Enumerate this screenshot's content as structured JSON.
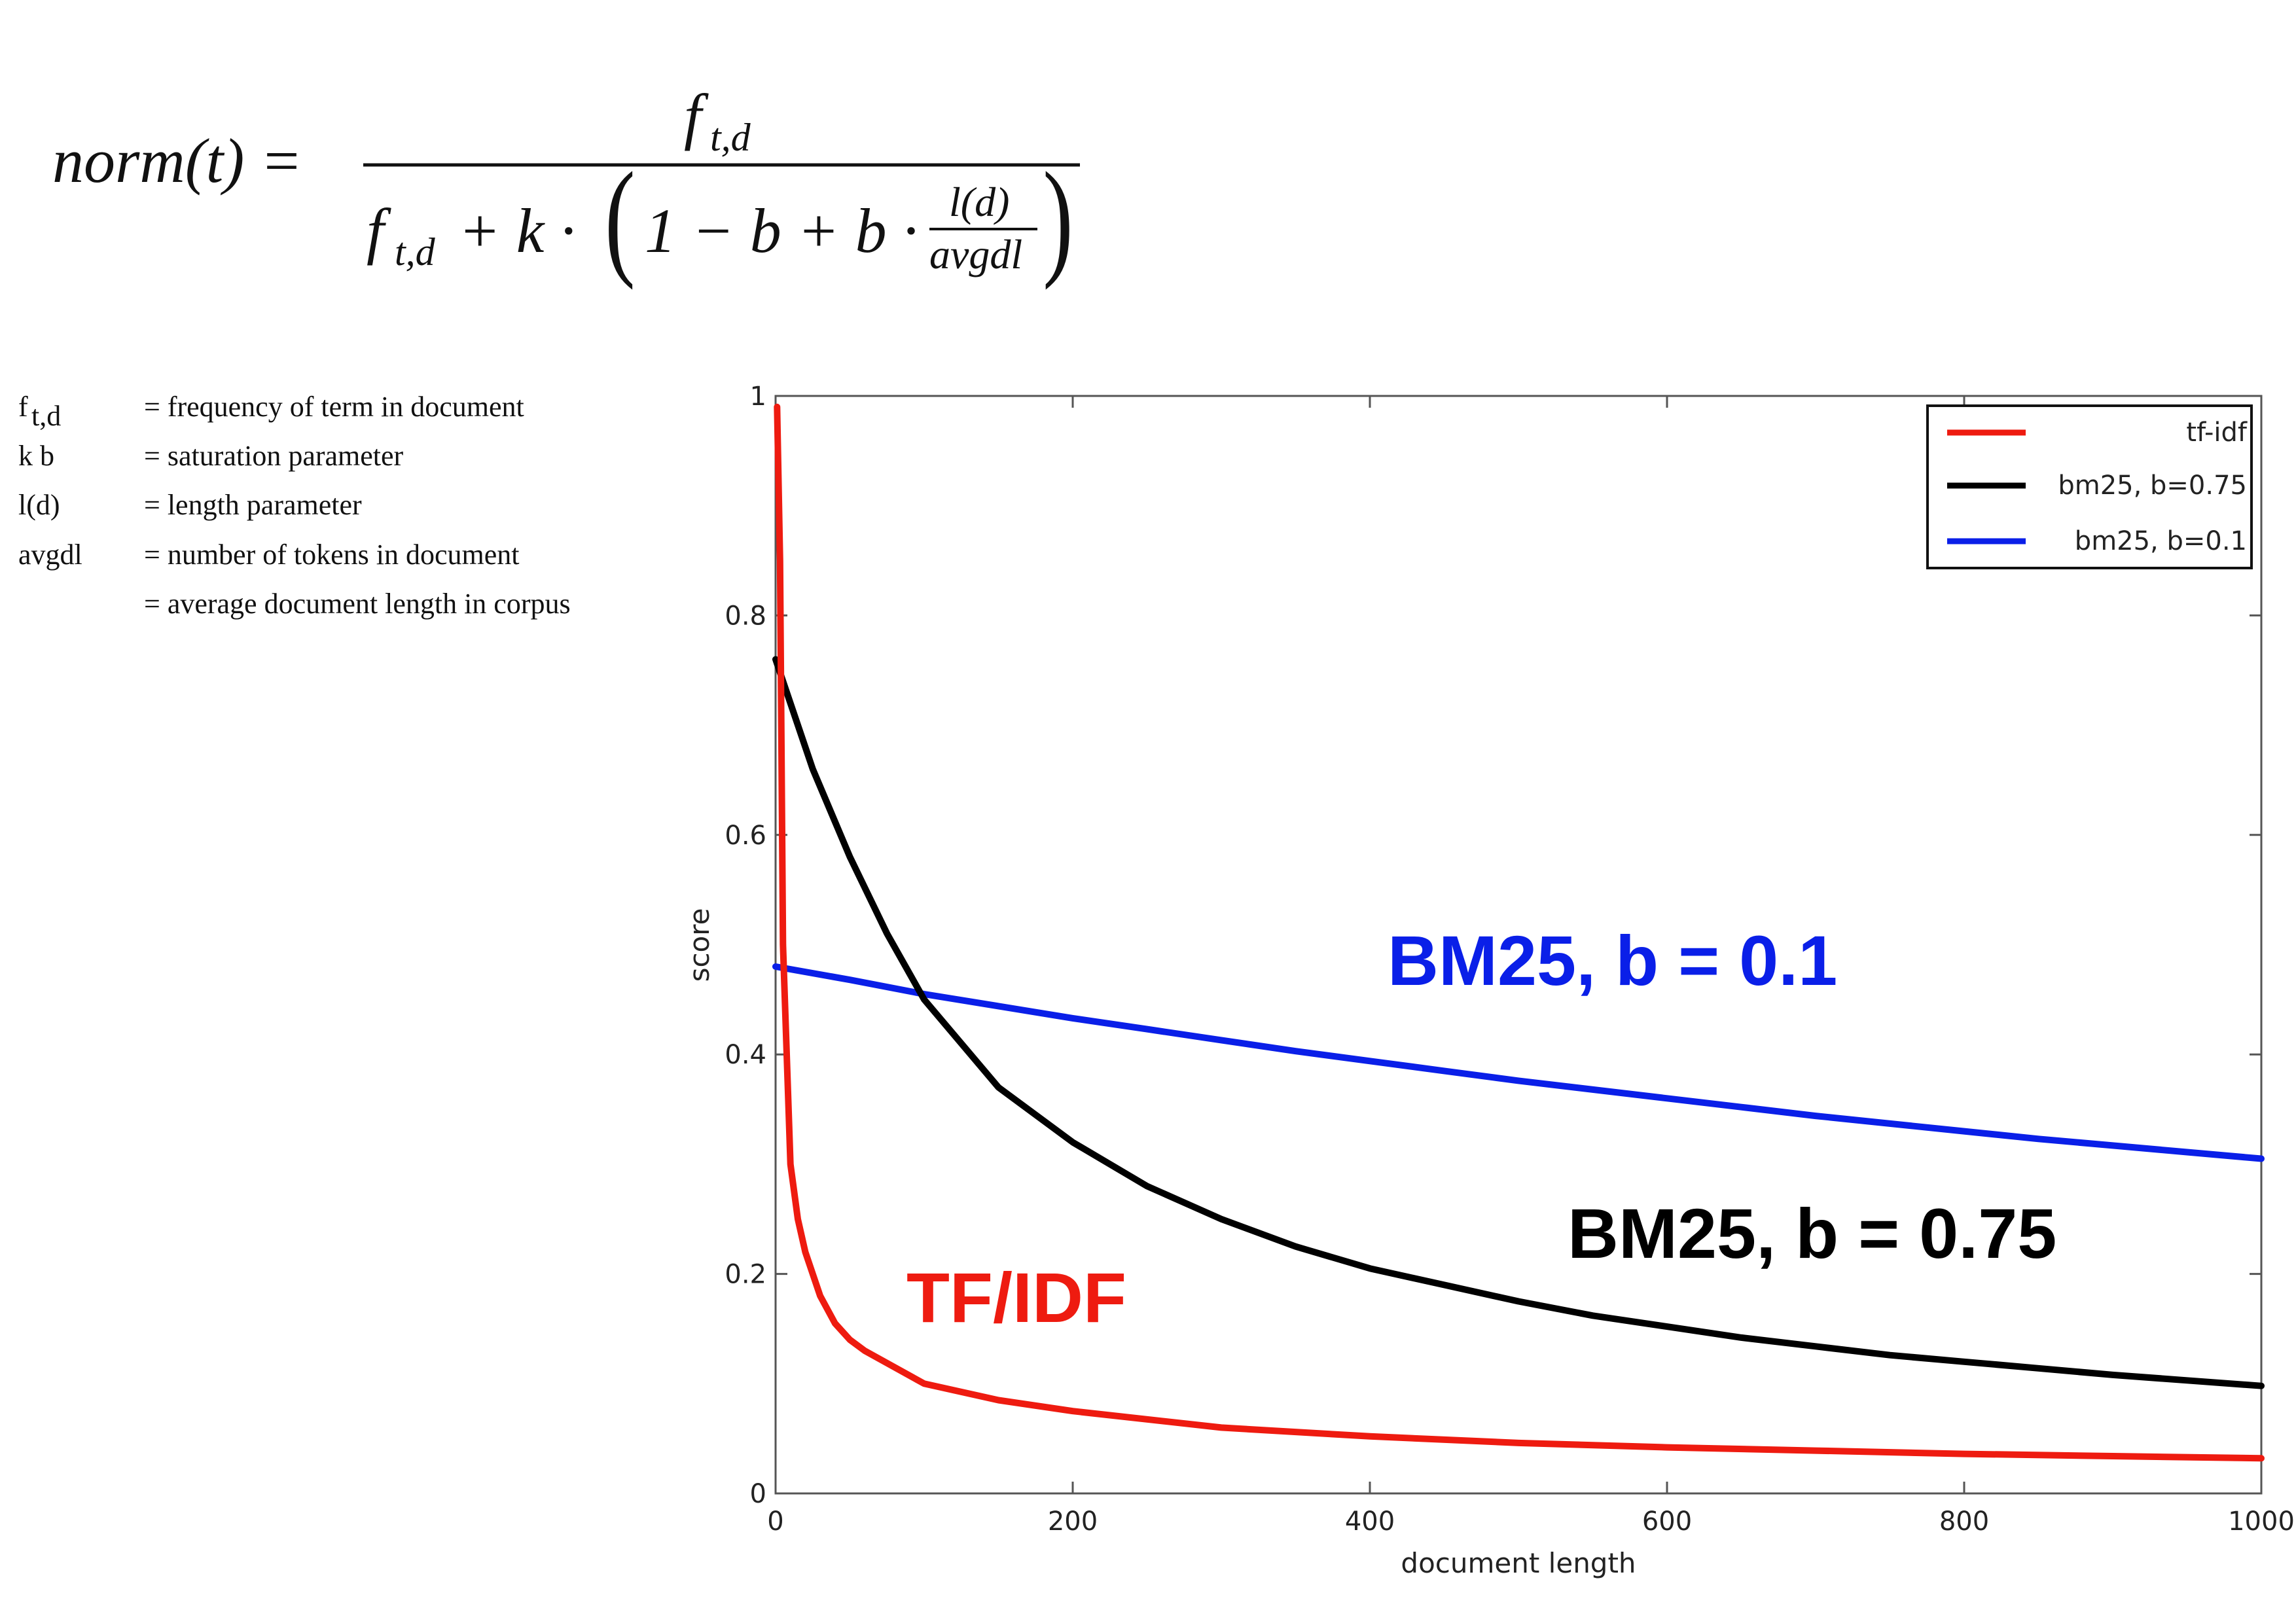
{
  "formula": {
    "lhs": "norm(t) =",
    "numerator": "f",
    "numerator_sub": "t,d",
    "den_f": "f",
    "den_f_sub": "t,d",
    "den_plus_k": "+ k ·",
    "den_inner": "1 − b + b ·",
    "frac_num": "l(d)",
    "frac_den": "avgdl"
  },
  "definitions": [
    {
      "symbol": "f",
      "symbol_sub": "t,d",
      "text": "= frequency   of  term  in  document"
    },
    {
      "symbol": "k  b",
      "symbol_sub": "",
      "text": "=  saturation parameter"
    },
    {
      "symbol": "l(d)",
      "symbol_sub": "",
      "text": "= length   parameter"
    },
    {
      "symbol": "avgdl",
      "symbol_sub": "",
      "text": "=  number of tokens  in  document"
    },
    {
      "symbol": "",
      "symbol_sub": "",
      "text": "= average   document  length   in  corpus"
    }
  ],
  "colors": {
    "tfidf": "#ee1b10",
    "bm25_075": "#000000",
    "bm25_01": "#0a1fe8"
  },
  "chart_data": {
    "type": "line",
    "xlabel": "document length",
    "ylabel": "score",
    "xlim": [
      0,
      1000
    ],
    "ylim": [
      0,
      1
    ],
    "xticks": [
      0,
      200,
      400,
      600,
      800,
      1000
    ],
    "yticks": [
      0,
      0.2,
      0.4,
      0.6,
      0.8,
      1
    ],
    "xtick_labels": [
      "0",
      "200",
      "400",
      "600",
      "800",
      "1000"
    ],
    "ytick_labels": [
      "0",
      "0.2",
      "0.4",
      "0.6",
      "0.8",
      "1"
    ],
    "legend_position": "top-right",
    "grid": false,
    "series": [
      {
        "name": "tf-idf",
        "color": "#ee1b10",
        "x": [
          1,
          3,
          5,
          10,
          15,
          20,
          30,
          40,
          50,
          60,
          80,
          100,
          150,
          200,
          300,
          400,
          500,
          600,
          700,
          800,
          900,
          1000
        ],
        "y": [
          0.99,
          0.85,
          0.5,
          0.3,
          0.25,
          0.22,
          0.18,
          0.155,
          0.14,
          0.13,
          0.115,
          0.1,
          0.085,
          0.075,
          0.06,
          0.052,
          0.046,
          0.042,
          0.039,
          0.036,
          0.034,
          0.032
        ]
      },
      {
        "name": "bm25, b=0.75",
        "color": "#000000",
        "x": [
          0,
          10,
          25,
          50,
          75,
          100,
          150,
          200,
          250,
          300,
          350,
          400,
          450,
          500,
          550,
          600,
          650,
          700,
          750,
          800,
          850,
          900,
          950,
          1000
        ],
        "y": [
          0.76,
          0.72,
          0.66,
          0.58,
          0.51,
          0.45,
          0.37,
          0.32,
          0.28,
          0.25,
          0.225,
          0.205,
          0.19,
          0.175,
          0.162,
          0.152,
          0.142,
          0.134,
          0.126,
          0.12,
          0.114,
          0.108,
          0.103,
          0.098
        ]
      },
      {
        "name": "bm25, b=0.1",
        "color": "#0a1fe8",
        "x": [
          0,
          50,
          100,
          150,
          200,
          250,
          300,
          350,
          400,
          450,
          500,
          550,
          600,
          650,
          700,
          750,
          800,
          850,
          900,
          950,
          1000
        ],
        "y": [
          0.48,
          0.468,
          0.455,
          0.444,
          0.433,
          0.423,
          0.413,
          0.403,
          0.394,
          0.385,
          0.376,
          0.368,
          0.36,
          0.352,
          0.344,
          0.337,
          0.33,
          0.323,
          0.317,
          0.311,
          0.305
        ]
      }
    ],
    "annotations": [
      {
        "text": "BM25, b = 0.1",
        "color": "#0a1fe8"
      },
      {
        "text": "BM25, b = 0.75",
        "color": "#000000"
      },
      {
        "text": "TF/IDF",
        "color": "#ee1b10"
      }
    ]
  }
}
